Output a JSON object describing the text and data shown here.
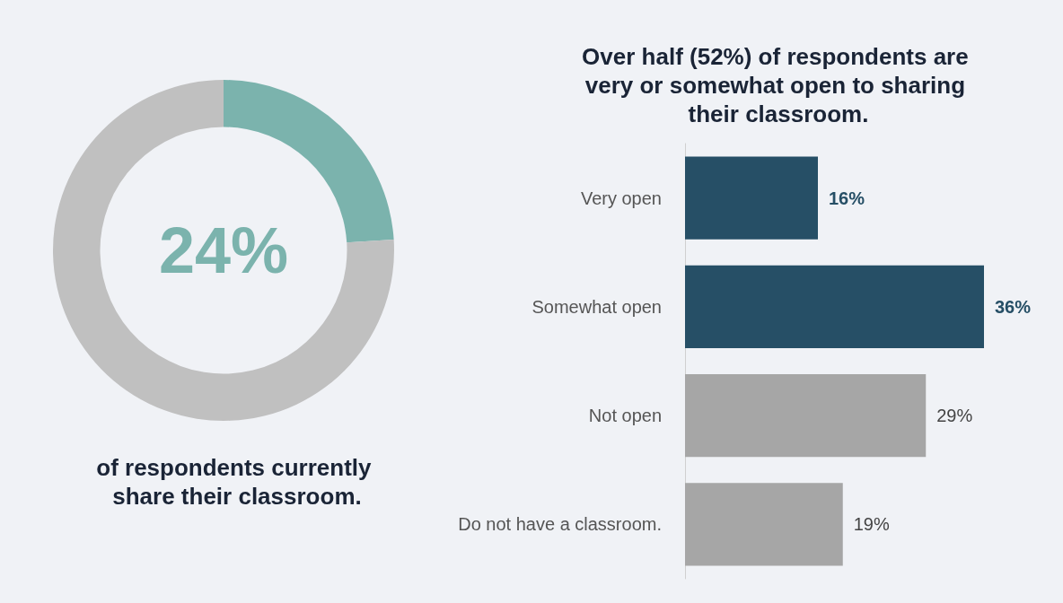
{
  "chart_data": [
    {
      "type": "donut",
      "categories": [
        null,
        null
      ],
      "values": [
        24,
        76
      ],
      "colors": [
        "#7bb3ad",
        "#c0c0c0"
      ],
      "value_labels": [
        "24%",
        null
      ],
      "annotations": [
        "of respondents currently share their classroom."
      ]
    },
    {
      "type": "bar",
      "orientation": "horizontal",
      "title": "Over half (52%) of respondents are very or somewhat open to sharing their classroom.",
      "categories": [
        "Very open",
        "Somewhat open",
        "Not open",
        "Do not have a classroom."
      ],
      "values": [
        16,
        36,
        29,
        19
      ],
      "colors": [
        "#264f66",
        "#264f66",
        "#a6a6a6",
        "#a6a6a6"
      ],
      "value_labels": [
        "16%",
        "36%",
        "29%",
        "19%"
      ]
    }
  ]
}
